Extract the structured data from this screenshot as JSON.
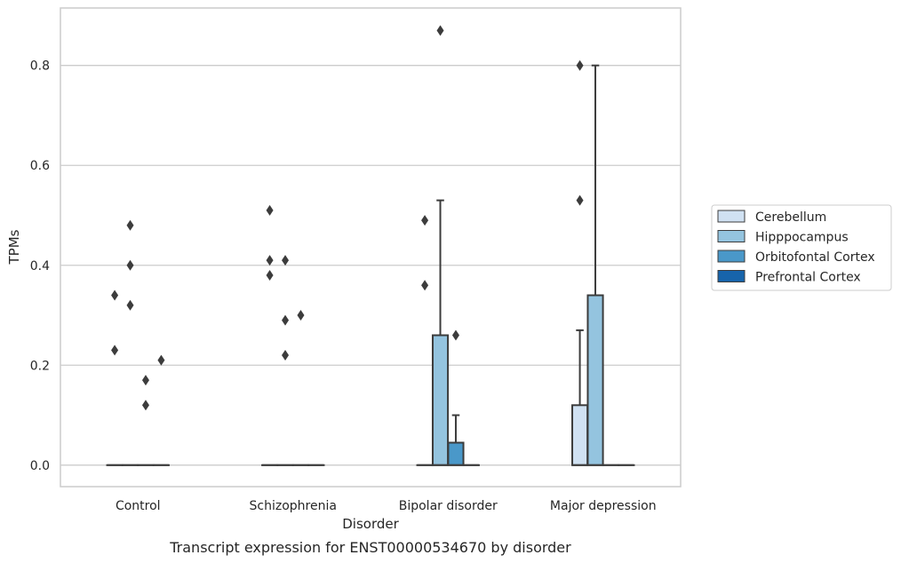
{
  "chart_data": {
    "type": "box",
    "caption": "Transcript expression for ENST00000534670 by disorder",
    "xlabel": "Disorder",
    "ylabel": "TPMs",
    "categories": [
      "Control",
      "Schizophrenia",
      "Bipolar disorder",
      "Major depression"
    ],
    "ylim": [
      -0.043,
      0.915
    ],
    "yticks": [
      0.0,
      0.2,
      0.4,
      0.6,
      0.8
    ],
    "ytick_labels": [
      "0.0",
      "0.2",
      "0.4",
      "0.6",
      "0.8"
    ],
    "grid": "horizontal",
    "legend_position": "right",
    "series": [
      {
        "name": "Cerebellum",
        "color": "#d0e1f2",
        "boxes": [
          {
            "q1": 0,
            "median": 0,
            "q3": 0,
            "whisker_low": 0,
            "whisker_high": 0,
            "outliers": [
              0.34,
              0.23
            ]
          },
          {
            "q1": 0,
            "median": 0,
            "q3": 0,
            "whisker_low": 0,
            "whisker_high": 0,
            "outliers": [
              0.51,
              0.41,
              0.38
            ]
          },
          {
            "q1": 0,
            "median": 0,
            "q3": 0,
            "whisker_low": 0,
            "whisker_high": 0,
            "outliers": [
              0.49,
              0.36
            ]
          },
          {
            "q1": 0,
            "median": 0,
            "q3": 0.12,
            "whisker_low": 0,
            "whisker_high": 0.27,
            "outliers": [
              0.8,
              0.53
            ]
          }
        ]
      },
      {
        "name": "Hipppocampus",
        "color": "#94c4df",
        "boxes": [
          {
            "q1": 0,
            "median": 0,
            "q3": 0,
            "whisker_low": 0,
            "whisker_high": 0,
            "outliers": [
              0.48,
              0.4,
              0.32
            ]
          },
          {
            "q1": 0,
            "median": 0,
            "q3": 0,
            "whisker_low": 0,
            "whisker_high": 0,
            "outliers": [
              0.41,
              0.29,
              0.22
            ]
          },
          {
            "q1": 0,
            "median": 0,
            "q3": 0.26,
            "whisker_low": 0,
            "whisker_high": 0.53,
            "outliers": [
              0.87
            ]
          },
          {
            "q1": 0,
            "median": 0,
            "q3": 0.34,
            "whisker_low": 0,
            "whisker_high": 0.8,
            "outliers": []
          }
        ]
      },
      {
        "name": "Orbitofontal Cortex",
        "color": "#4a98c9",
        "boxes": [
          {
            "q1": 0,
            "median": 0,
            "q3": 0,
            "whisker_low": 0,
            "whisker_high": 0,
            "outliers": [
              0.17,
              0.12
            ]
          },
          {
            "q1": 0,
            "median": 0,
            "q3": 0,
            "whisker_low": 0,
            "whisker_high": 0,
            "outliers": [
              0.3
            ]
          },
          {
            "q1": 0,
            "median": 0,
            "q3": 0.045,
            "whisker_low": 0,
            "whisker_high": 0.1,
            "outliers": [
              0.26
            ]
          },
          {
            "q1": 0,
            "median": 0,
            "q3": 0,
            "whisker_low": 0,
            "whisker_high": 0,
            "outliers": []
          }
        ]
      },
      {
        "name": "Prefrontal Cortex",
        "color": "#1764ab",
        "boxes": [
          {
            "q1": 0,
            "median": 0,
            "q3": 0,
            "whisker_low": 0,
            "whisker_high": 0,
            "outliers": [
              0.21
            ]
          },
          {
            "q1": 0,
            "median": 0,
            "q3": 0,
            "whisker_low": 0,
            "whisker_high": 0,
            "outliers": []
          },
          {
            "q1": 0,
            "median": 0,
            "q3": 0,
            "whisker_low": 0,
            "whisker_high": 0,
            "outliers": []
          },
          {
            "q1": 0,
            "median": 0,
            "q3": 0,
            "whisker_low": 0,
            "whisker_high": 0,
            "outliers": []
          }
        ]
      }
    ]
  }
}
